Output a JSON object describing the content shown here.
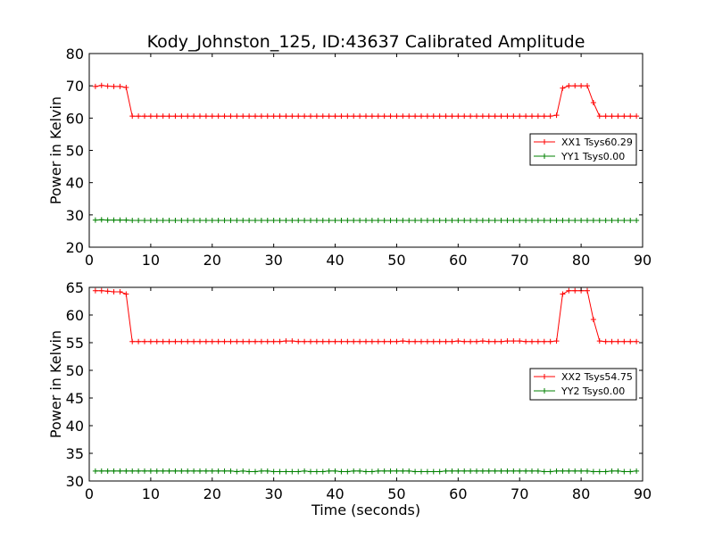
{
  "chart_data": [
    {
      "type": "line",
      "title": "Kody_Johnston_125, ID:43637 Calibrated Amplitude",
      "xlabel": "",
      "ylabel": "Power in Kelvin",
      "xlim": [
        0,
        90
      ],
      "ylim": [
        20,
        80
      ],
      "xticks": [
        0,
        10,
        20,
        30,
        40,
        50,
        60,
        70,
        80,
        90
      ],
      "yticks": [
        20,
        30,
        40,
        50,
        60,
        70,
        80
      ],
      "grid": false,
      "legend_position": "center-right",
      "series": [
        {
          "name": "XX1 Tsys60.29",
          "color": "#ff0000",
          "marker": "+",
          "x": [
            1,
            2,
            3,
            4,
            5,
            6,
            7,
            8,
            9,
            10,
            11,
            12,
            13,
            14,
            15,
            16,
            17,
            18,
            19,
            20,
            21,
            22,
            23,
            24,
            25,
            26,
            27,
            28,
            29,
            30,
            31,
            32,
            33,
            34,
            35,
            36,
            37,
            38,
            39,
            40,
            41,
            42,
            43,
            44,
            45,
            46,
            47,
            48,
            49,
            50,
            51,
            52,
            53,
            54,
            55,
            56,
            57,
            58,
            59,
            60,
            61,
            62,
            63,
            64,
            65,
            66,
            67,
            68,
            69,
            70,
            71,
            72,
            73,
            74,
            75,
            76,
            77,
            78,
            79,
            80,
            81,
            82,
            83,
            84,
            85,
            86,
            87,
            88,
            89
          ],
          "y": [
            69.8,
            70.1,
            69.9,
            69.8,
            69.8,
            69.5,
            60.6,
            60.6,
            60.6,
            60.6,
            60.6,
            60.6,
            60.6,
            60.6,
            60.6,
            60.6,
            60.6,
            60.6,
            60.6,
            60.6,
            60.6,
            60.6,
            60.6,
            60.6,
            60.6,
            60.6,
            60.6,
            60.6,
            60.6,
            60.6,
            60.6,
            60.6,
            60.6,
            60.6,
            60.6,
            60.6,
            60.6,
            60.6,
            60.6,
            60.6,
            60.6,
            60.6,
            60.6,
            60.6,
            60.6,
            60.6,
            60.6,
            60.6,
            60.6,
            60.6,
            60.6,
            60.6,
            60.6,
            60.6,
            60.6,
            60.6,
            60.6,
            60.6,
            60.6,
            60.6,
            60.6,
            60.6,
            60.6,
            60.6,
            60.6,
            60.6,
            60.6,
            60.6,
            60.6,
            60.6,
            60.6,
            60.6,
            60.6,
            60.6,
            60.6,
            60.9,
            69.3,
            70.0,
            70.0,
            70.0,
            70.0,
            64.8,
            60.6,
            60.6,
            60.6,
            60.6,
            60.6,
            60.6,
            60.6
          ]
        },
        {
          "name": "YY1 Tsys0.00",
          "color": "#008000",
          "marker": "+",
          "x": [
            1,
            2,
            3,
            4,
            5,
            6,
            7,
            8,
            9,
            10,
            11,
            12,
            13,
            14,
            15,
            16,
            17,
            18,
            19,
            20,
            21,
            22,
            23,
            24,
            25,
            26,
            27,
            28,
            29,
            30,
            31,
            32,
            33,
            34,
            35,
            36,
            37,
            38,
            39,
            40,
            41,
            42,
            43,
            44,
            45,
            46,
            47,
            48,
            49,
            50,
            51,
            52,
            53,
            54,
            55,
            56,
            57,
            58,
            59,
            60,
            61,
            62,
            63,
            64,
            65,
            66,
            67,
            68,
            69,
            70,
            71,
            72,
            73,
            74,
            75,
            76,
            77,
            78,
            79,
            80,
            81,
            82,
            83,
            84,
            85,
            86,
            87,
            88,
            89
          ],
          "y": [
            28.4,
            28.5,
            28.4,
            28.4,
            28.4,
            28.4,
            28.3,
            28.3,
            28.3,
            28.3,
            28.3,
            28.3,
            28.3,
            28.3,
            28.3,
            28.3,
            28.3,
            28.3,
            28.3,
            28.3,
            28.3,
            28.3,
            28.3,
            28.3,
            28.3,
            28.3,
            28.3,
            28.3,
            28.3,
            28.3,
            28.3,
            28.3,
            28.3,
            28.3,
            28.3,
            28.3,
            28.3,
            28.3,
            28.3,
            28.3,
            28.3,
            28.3,
            28.3,
            28.3,
            28.3,
            28.3,
            28.3,
            28.3,
            28.3,
            28.3,
            28.3,
            28.3,
            28.3,
            28.3,
            28.3,
            28.3,
            28.3,
            28.3,
            28.3,
            28.3,
            28.3,
            28.3,
            28.3,
            28.3,
            28.3,
            28.3,
            28.3,
            28.3,
            28.3,
            28.3,
            28.3,
            28.3,
            28.3,
            28.3,
            28.3,
            28.3,
            28.3,
            28.3,
            28.3,
            28.3,
            28.3,
            28.3,
            28.3,
            28.3,
            28.3,
            28.3,
            28.3,
            28.3,
            28.3
          ]
        }
      ]
    },
    {
      "type": "line",
      "title": "",
      "xlabel": "Time (seconds)",
      "ylabel": "Power in Kelvin",
      "xlim": [
        0,
        90
      ],
      "ylim": [
        30,
        65
      ],
      "xticks": [
        0,
        10,
        20,
        30,
        40,
        50,
        60,
        70,
        80,
        90
      ],
      "yticks": [
        30,
        35,
        40,
        45,
        50,
        55,
        60,
        65
      ],
      "grid": false,
      "legend_position": "center-right",
      "series": [
        {
          "name": "XX2 Tsys54.75",
          "color": "#ff0000",
          "marker": "+",
          "x": [
            1,
            2,
            3,
            4,
            5,
            6,
            7,
            8,
            9,
            10,
            11,
            12,
            13,
            14,
            15,
            16,
            17,
            18,
            19,
            20,
            21,
            22,
            23,
            24,
            25,
            26,
            27,
            28,
            29,
            30,
            31,
            32,
            33,
            34,
            35,
            36,
            37,
            38,
            39,
            40,
            41,
            42,
            43,
            44,
            45,
            46,
            47,
            48,
            49,
            50,
            51,
            52,
            53,
            54,
            55,
            56,
            57,
            58,
            59,
            60,
            61,
            62,
            63,
            64,
            65,
            66,
            67,
            68,
            69,
            70,
            71,
            72,
            73,
            74,
            75,
            76,
            77,
            78,
            79,
            80,
            81,
            82,
            83,
            84,
            85,
            86,
            87,
            88,
            89
          ],
          "y": [
            64.4,
            64.4,
            64.3,
            64.2,
            64.2,
            63.8,
            55.2,
            55.2,
            55.2,
            55.2,
            55.2,
            55.2,
            55.2,
            55.2,
            55.2,
            55.2,
            55.2,
            55.2,
            55.2,
            55.2,
            55.2,
            55.2,
            55.2,
            55.2,
            55.2,
            55.2,
            55.2,
            55.2,
            55.2,
            55.2,
            55.2,
            55.3,
            55.3,
            55.2,
            55.2,
            55.2,
            55.2,
            55.2,
            55.2,
            55.2,
            55.2,
            55.2,
            55.2,
            55.2,
            55.2,
            55.2,
            55.2,
            55.2,
            55.2,
            55.2,
            55.3,
            55.2,
            55.2,
            55.2,
            55.2,
            55.2,
            55.2,
            55.2,
            55.2,
            55.3,
            55.2,
            55.2,
            55.2,
            55.3,
            55.2,
            55.2,
            55.2,
            55.3,
            55.3,
            55.3,
            55.2,
            55.2,
            55.2,
            55.2,
            55.2,
            55.3,
            63.8,
            64.4,
            64.4,
            64.4,
            64.4,
            59.2,
            55.3,
            55.2,
            55.2,
            55.2,
            55.2,
            55.2,
            55.2
          ]
        },
        {
          "name": "YY2 Tsys0.00",
          "color": "#008000",
          "marker": "+",
          "x": [
            1,
            2,
            3,
            4,
            5,
            6,
            7,
            8,
            9,
            10,
            11,
            12,
            13,
            14,
            15,
            16,
            17,
            18,
            19,
            20,
            21,
            22,
            23,
            24,
            25,
            26,
            27,
            28,
            29,
            30,
            31,
            32,
            33,
            34,
            35,
            36,
            37,
            38,
            39,
            40,
            41,
            42,
            43,
            44,
            45,
            46,
            47,
            48,
            49,
            50,
            51,
            52,
            53,
            54,
            55,
            56,
            57,
            58,
            59,
            60,
            61,
            62,
            63,
            64,
            65,
            66,
            67,
            68,
            69,
            70,
            71,
            72,
            73,
            74,
            75,
            76,
            77,
            78,
            79,
            80,
            81,
            82,
            83,
            84,
            85,
            86,
            87,
            88,
            89
          ],
          "y": [
            31.8,
            31.8,
            31.8,
            31.8,
            31.8,
            31.8,
            31.8,
            31.8,
            31.8,
            31.8,
            31.8,
            31.8,
            31.8,
            31.8,
            31.8,
            31.8,
            31.8,
            31.8,
            31.8,
            31.8,
            31.8,
            31.8,
            31.8,
            31.7,
            31.8,
            31.7,
            31.7,
            31.8,
            31.8,
            31.7,
            31.7,
            31.7,
            31.7,
            31.7,
            31.8,
            31.7,
            31.7,
            31.7,
            31.8,
            31.8,
            31.7,
            31.7,
            31.8,
            31.8,
            31.7,
            31.7,
            31.8,
            31.8,
            31.8,
            31.8,
            31.8,
            31.8,
            31.7,
            31.7,
            31.7,
            31.7,
            31.7,
            31.8,
            31.8,
            31.8,
            31.8,
            31.8,
            31.8,
            31.8,
            31.8,
            31.8,
            31.8,
            31.8,
            31.8,
            31.8,
            31.8,
            31.8,
            31.8,
            31.7,
            31.7,
            31.8,
            31.8,
            31.8,
            31.8,
            31.8,
            31.8,
            31.7,
            31.7,
            31.7,
            31.8,
            31.8,
            31.7,
            31.7,
            31.8
          ]
        }
      ]
    }
  ]
}
